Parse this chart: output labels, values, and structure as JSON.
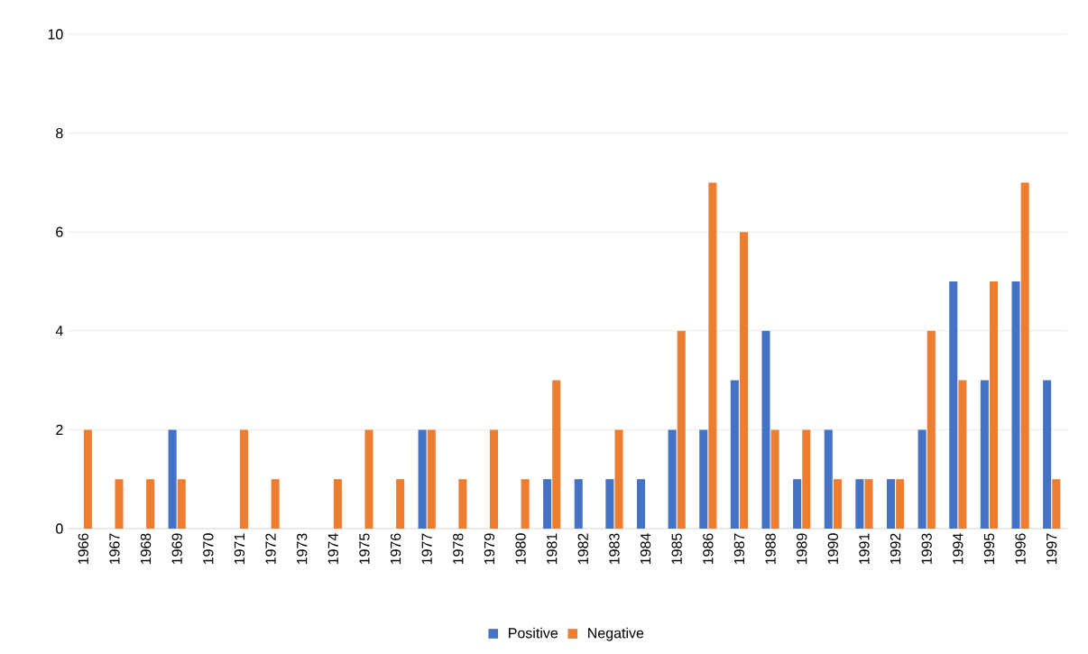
{
  "chart_data": {
    "type": "bar",
    "categories": [
      "1966",
      "1967",
      "1968",
      "1969",
      "1970",
      "1971",
      "1972",
      "1973",
      "1974",
      "1975",
      "1976",
      "1977",
      "1978",
      "1979",
      "1980",
      "1981",
      "1982",
      "1983",
      "1984",
      "1985",
      "1986",
      "1987",
      "1988",
      "1989",
      "1990",
      "1991",
      "1992",
      "1993",
      "1994",
      "1995",
      "1996",
      "1997"
    ],
    "series": [
      {
        "name": "Positive",
        "color": "#4472c4",
        "values": [
          0,
          0,
          0,
          2,
          0,
          0,
          0,
          0,
          0,
          0,
          0,
          2,
          0,
          0,
          0,
          1,
          1,
          1,
          1,
          2,
          2,
          3,
          4,
          1,
          2,
          1,
          1,
          2,
          5,
          3,
          5,
          3
        ]
      },
      {
        "name": "Negative",
        "color": "#ed7d31",
        "values": [
          2,
          1,
          1,
          1,
          0,
          2,
          1,
          0,
          1,
          2,
          1,
          2,
          1,
          2,
          1,
          3,
          0,
          2,
          0,
          4,
          7,
          6,
          2,
          2,
          1,
          1,
          1,
          4,
          3,
          5,
          7,
          1
        ]
      }
    ],
    "ylim": [
      0,
      10
    ],
    "yticks": [
      0,
      2,
      4,
      6,
      8,
      10
    ],
    "grid": "y",
    "legend": "bottom"
  }
}
